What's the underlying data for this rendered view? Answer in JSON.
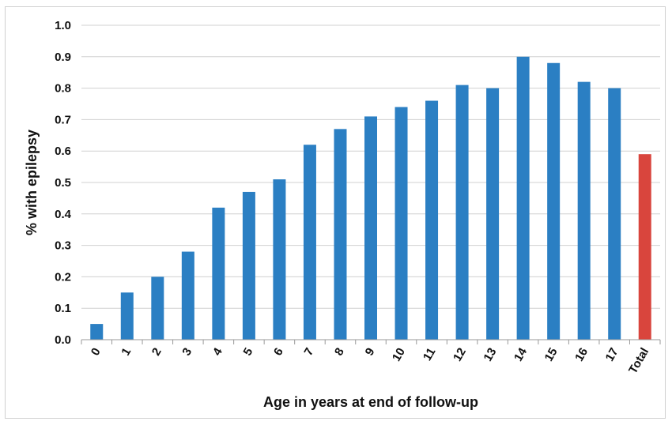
{
  "chart_data": {
    "type": "bar",
    "title": "",
    "xlabel": "Age in years at end of follow-up",
    "ylabel": "% with epilepsy",
    "ylim": [
      0,
      1.0
    ],
    "yticks": [
      "0.0",
      "0.1",
      "0.2",
      "0.3",
      "0.4",
      "0.5",
      "0.6",
      "0.7",
      "0.8",
      "0.9",
      "1.0"
    ],
    "grid": "horizontal",
    "legend": "none",
    "categories": [
      "0",
      "1",
      "2",
      "3",
      "4",
      "5",
      "6",
      "7",
      "8",
      "9",
      "10",
      "11",
      "12",
      "13",
      "14",
      "15",
      "16",
      "17",
      "Total"
    ],
    "values": [
      0.05,
      0.15,
      0.2,
      0.28,
      0.42,
      0.47,
      0.51,
      0.62,
      0.67,
      0.71,
      0.74,
      0.76,
      0.81,
      0.8,
      0.9,
      0.88,
      0.82,
      0.8,
      0.59
    ],
    "colors": {
      "bar": "#2b7fc3",
      "total_bar": "#d9453d",
      "grid": "#d0d0d0",
      "axis": "#999999"
    }
  }
}
